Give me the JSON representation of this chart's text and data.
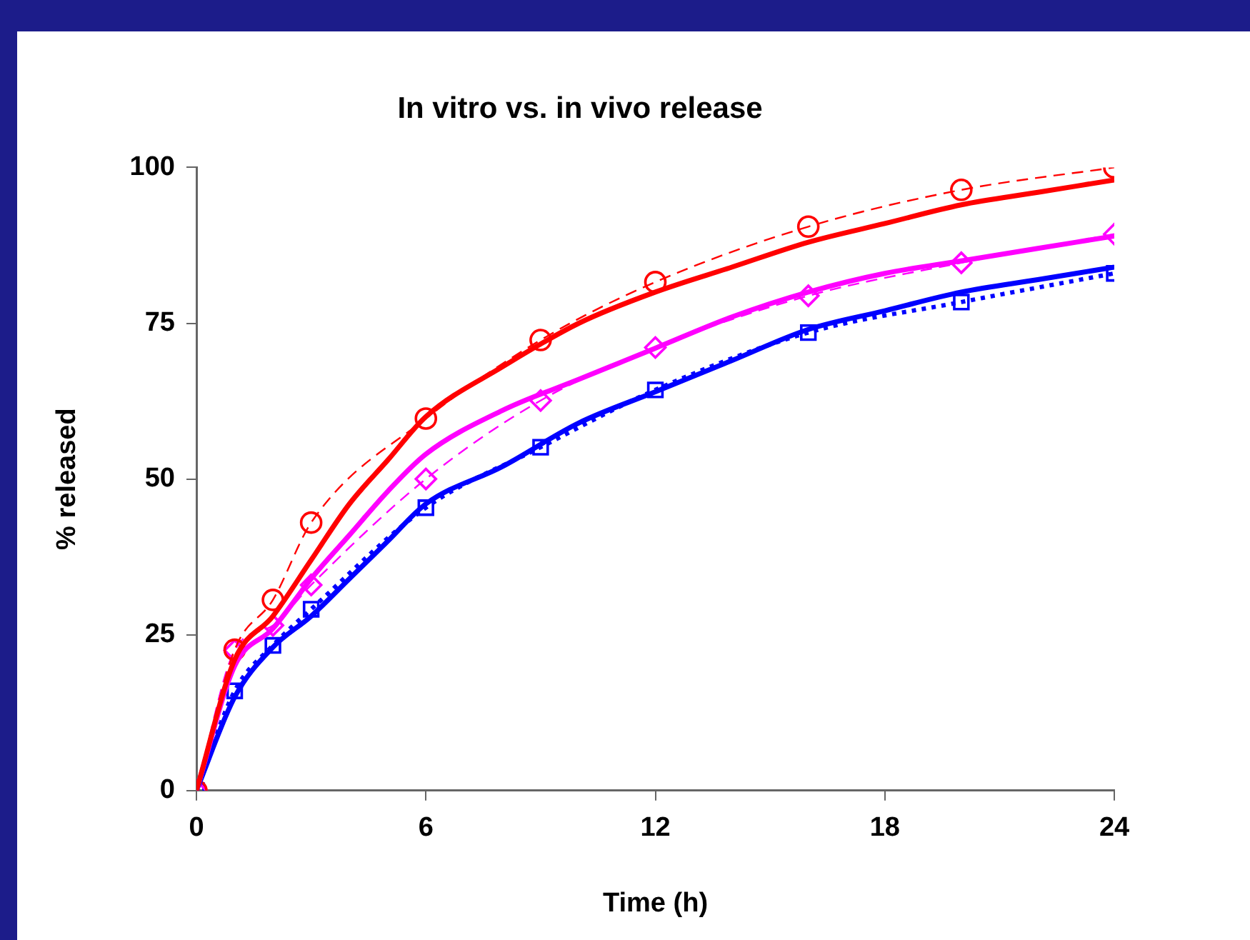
{
  "chart_data": {
    "type": "line",
    "title": "In vitro vs. in vivo release",
    "xlabel": "Time (h)",
    "ylabel": "% released",
    "xlim": [
      0,
      24
    ],
    "xticks": [
      0,
      6,
      12,
      18,
      24
    ],
    "ylim": [
      0,
      100
    ],
    "yticks": [
      0,
      25,
      50,
      75,
      100
    ],
    "grid": false,
    "legend": false,
    "series": [
      {
        "color": "#ff0000",
        "line_style": "solid",
        "marker": "none",
        "x": [
          0,
          1,
          2,
          3,
          4,
          5,
          6,
          8,
          10,
          12,
          14,
          16,
          18,
          20,
          22,
          24
        ],
        "values": [
          0,
          21,
          28,
          37,
          46,
          53,
          60,
          68,
          75,
          80,
          84,
          88,
          91,
          94,
          96,
          98
        ]
      },
      {
        "color": "#ff00ff",
        "line_style": "solid",
        "marker": "none",
        "x": [
          0,
          1,
          2,
          3,
          4,
          5,
          6,
          8,
          10,
          12,
          14,
          16,
          18,
          20,
          22,
          24
        ],
        "values": [
          0,
          20,
          26,
          34,
          41,
          48,
          54,
          61,
          66,
          71,
          76,
          80,
          83,
          85,
          87,
          89
        ]
      },
      {
        "color": "#0000ff",
        "line_style": "solid",
        "marker": "none",
        "x": [
          0,
          1,
          2,
          3,
          4,
          5,
          6,
          8,
          10,
          12,
          14,
          16,
          18,
          20,
          22,
          24
        ],
        "values": [
          0,
          15,
          23,
          28,
          34,
          40,
          46,
          52,
          59,
          64,
          69,
          74,
          77,
          80,
          82,
          84
        ]
      },
      {
        "color": "#ff0000",
        "line_style": "dashed",
        "marker": "circle",
        "x": [
          0,
          1,
          2,
          3,
          6,
          9,
          12,
          16,
          20,
          24
        ],
        "values": [
          0,
          22.6,
          30.6,
          43,
          59.7,
          72.3,
          81.6,
          90.5,
          96.4,
          100
        ]
      },
      {
        "color": "#ff00ff",
        "line_style": "dashed",
        "marker": "diamond",
        "x": [
          0,
          1,
          2,
          3,
          6,
          9,
          12,
          16,
          20,
          24
        ],
        "values": [
          0,
          22.5,
          26.5,
          33,
          50,
          62.6,
          71.1,
          79.4,
          84.7,
          89.3
        ]
      },
      {
        "color": "#0000ff",
        "line_style": "dotted",
        "marker": "square",
        "x": [
          0,
          1,
          2,
          3,
          6,
          9,
          12,
          16,
          20,
          24
        ],
        "values": [
          0,
          16,
          23.3,
          29.1,
          45.4,
          55.1,
          64.3,
          73.5,
          78.4,
          83
        ]
      }
    ]
  }
}
